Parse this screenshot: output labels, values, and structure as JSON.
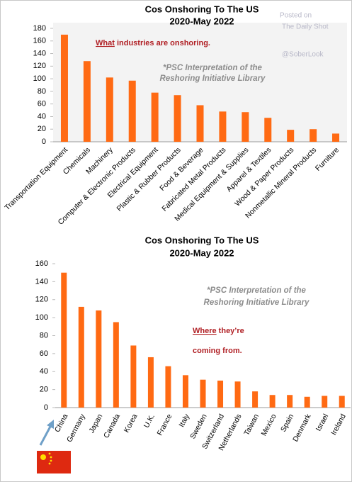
{
  "chart_data": [
    {
      "type": "bar",
      "title": "Cos Onshoring To The US",
      "subtitle": "2020-May 2022",
      "categories": [
        "Transportation Equipment",
        "Chemicals",
        "Machinery",
        "Computer & Electronic Products",
        "Electrical Equipment",
        "Plastic & Rubber Products",
        "Food & Beverage",
        "Fabricated Metal Products",
        "Medical Equipment & Supplies",
        "Apparel & Textiles",
        "Wood & Paper Products",
        "Nonmetallic Mineral Products",
        "Furniture"
      ],
      "values": [
        170,
        128,
        102,
        97,
        78,
        74,
        58,
        48,
        47,
        38,
        19,
        20,
        13
      ],
      "color": "#ff6a13",
      "ylim": [
        0,
        180
      ],
      "yticks": [
        0,
        20,
        40,
        60,
        80,
        100,
        120,
        140,
        160,
        180
      ],
      "annotations": [
        "What",
        " industries are onshoring.",
        "*PSC Interpretation of the",
        "Reshoring Initiative Library"
      ],
      "watermark": [
        "Posted on",
        "The Daily Shot",
        "@SoberLook"
      ]
    },
    {
      "type": "bar",
      "title": "Cos Onshoring To The US",
      "subtitle": "2020-May 2022",
      "categories": [
        "China",
        "Germany",
        "Japan",
        "Canada",
        "Korea",
        "U.K.",
        "France",
        "Italy",
        "Sweden",
        "Switzerland",
        "Netherlands",
        "Taiwan",
        "Mexico",
        "Spain",
        "Denmark",
        "Israel",
        "Ireland"
      ],
      "values": [
        150,
        112,
        108,
        95,
        69,
        56,
        46,
        36,
        31,
        30,
        29,
        18,
        14,
        14,
        12,
        13,
        13
      ],
      "color": "#ff6a13",
      "ylim": [
        0,
        160
      ],
      "yticks": [
        0,
        20,
        40,
        60,
        80,
        100,
        120,
        140,
        160
      ],
      "annotations": [
        "*PSC Interpretation of the",
        "Reshoring Initiative Library",
        "Where",
        " they’re",
        "coming from."
      ]
    }
  ]
}
